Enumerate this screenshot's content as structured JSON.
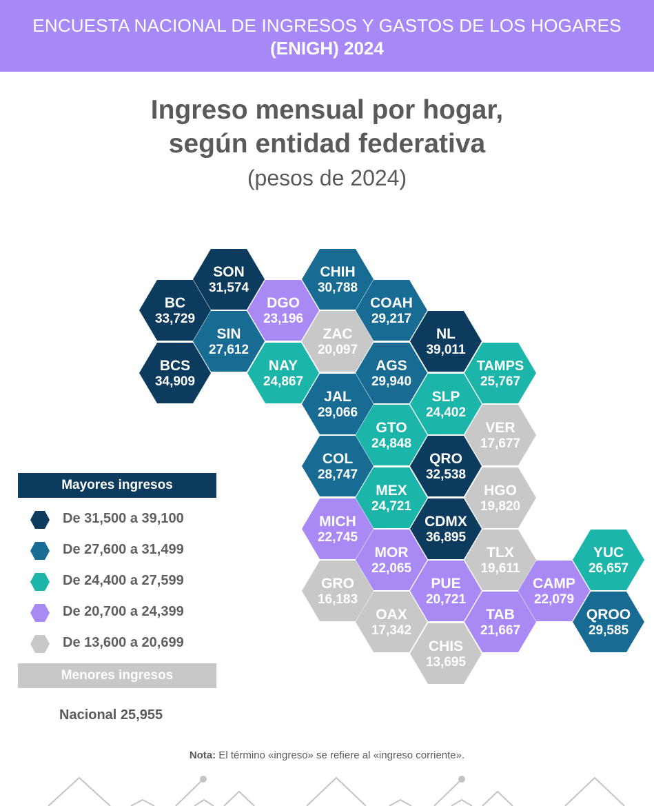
{
  "header": {
    "line1": "ENCUESTA NACIONAL DE INGRESOS Y GASTOS DE LOS HOGARES",
    "line2": "(ENIGH) 2024"
  },
  "title": {
    "line1": "Ingreso mensual por hogar,",
    "line2": "según entidad federativa",
    "subtitle": "(pesos de 2024)"
  },
  "colors": {
    "c1": "#0d3b5e",
    "c2": "#186b93",
    "c3": "#1bb5aa",
    "c4": "#a98af5",
    "c5": "#c8c8c8"
  },
  "states": [
    {
      "code": "SON",
      "value": "31,574",
      "color": "c1"
    },
    {
      "code": "CHIH",
      "value": "30,788",
      "color": "c2"
    },
    {
      "code": "BC",
      "value": "33,729",
      "color": "c1"
    },
    {
      "code": "DGO",
      "value": "23,196",
      "color": "c4"
    },
    {
      "code": "COAH",
      "value": "29,217",
      "color": "c2"
    },
    {
      "code": "SIN",
      "value": "27,612",
      "color": "c2"
    },
    {
      "code": "ZAC",
      "value": "20,097",
      "color": "c5"
    },
    {
      "code": "NL",
      "value": "39,011",
      "color": "c1"
    },
    {
      "code": "BCS",
      "value": "34,909",
      "color": "c1"
    },
    {
      "code": "NAY",
      "value": "24,867",
      "color": "c3"
    },
    {
      "code": "AGS",
      "value": "29,940",
      "color": "c2"
    },
    {
      "code": "TAMPS",
      "value": "25,767",
      "color": "c3"
    },
    {
      "code": "JAL",
      "value": "29,066",
      "color": "c2"
    },
    {
      "code": "SLP",
      "value": "24,402",
      "color": "c3"
    },
    {
      "code": "GTO",
      "value": "24,848",
      "color": "c3"
    },
    {
      "code": "VER",
      "value": "17,677",
      "color": "c5"
    },
    {
      "code": "COL",
      "value": "28,747",
      "color": "c2"
    },
    {
      "code": "QRO",
      "value": "32,538",
      "color": "c1"
    },
    {
      "code": "MEX",
      "value": "24,721",
      "color": "c3"
    },
    {
      "code": "HGO",
      "value": "19,820",
      "color": "c5"
    },
    {
      "code": "MICH",
      "value": "22,745",
      "color": "c4"
    },
    {
      "code": "CDMX",
      "value": "36,895",
      "color": "c1"
    },
    {
      "code": "MOR",
      "value": "22,065",
      "color": "c4"
    },
    {
      "code": "TLX",
      "value": "19,611",
      "color": "c5"
    },
    {
      "code": "YUC",
      "value": "26,657",
      "color": "c3"
    },
    {
      "code": "GRO",
      "value": "16,183",
      "color": "c5"
    },
    {
      "code": "PUE",
      "value": "20,721",
      "color": "c4"
    },
    {
      "code": "CAMP",
      "value": "22,079",
      "color": "c4"
    },
    {
      "code": "OAX",
      "value": "17,342",
      "color": "c5"
    },
    {
      "code": "TAB",
      "value": "21,667",
      "color": "c4"
    },
    {
      "code": "QROO",
      "value": "29,585",
      "color": "c2"
    },
    {
      "code": "CHIS",
      "value": "13,695",
      "color": "c5"
    }
  ],
  "legend": {
    "top_label": "Mayores ingresos",
    "bottom_label": "Menores ingresos",
    "items": [
      {
        "label": "De 31,500 a 39,100",
        "color": "c1"
      },
      {
        "label": "De 27,600 a 31,499",
        "color": "c2"
      },
      {
        "label": "De 24,400 a 27,599",
        "color": "c3"
      },
      {
        "label": "De 20,700 a 24,399",
        "color": "c4"
      },
      {
        "label": "De 13,600 a 20,699",
        "color": "c5"
      }
    ]
  },
  "nacional": "Nacional 25,955",
  "nota": {
    "bold": "Nota:",
    "text": " El término «ingreso» se refiere al «ingreso corriente»."
  }
}
